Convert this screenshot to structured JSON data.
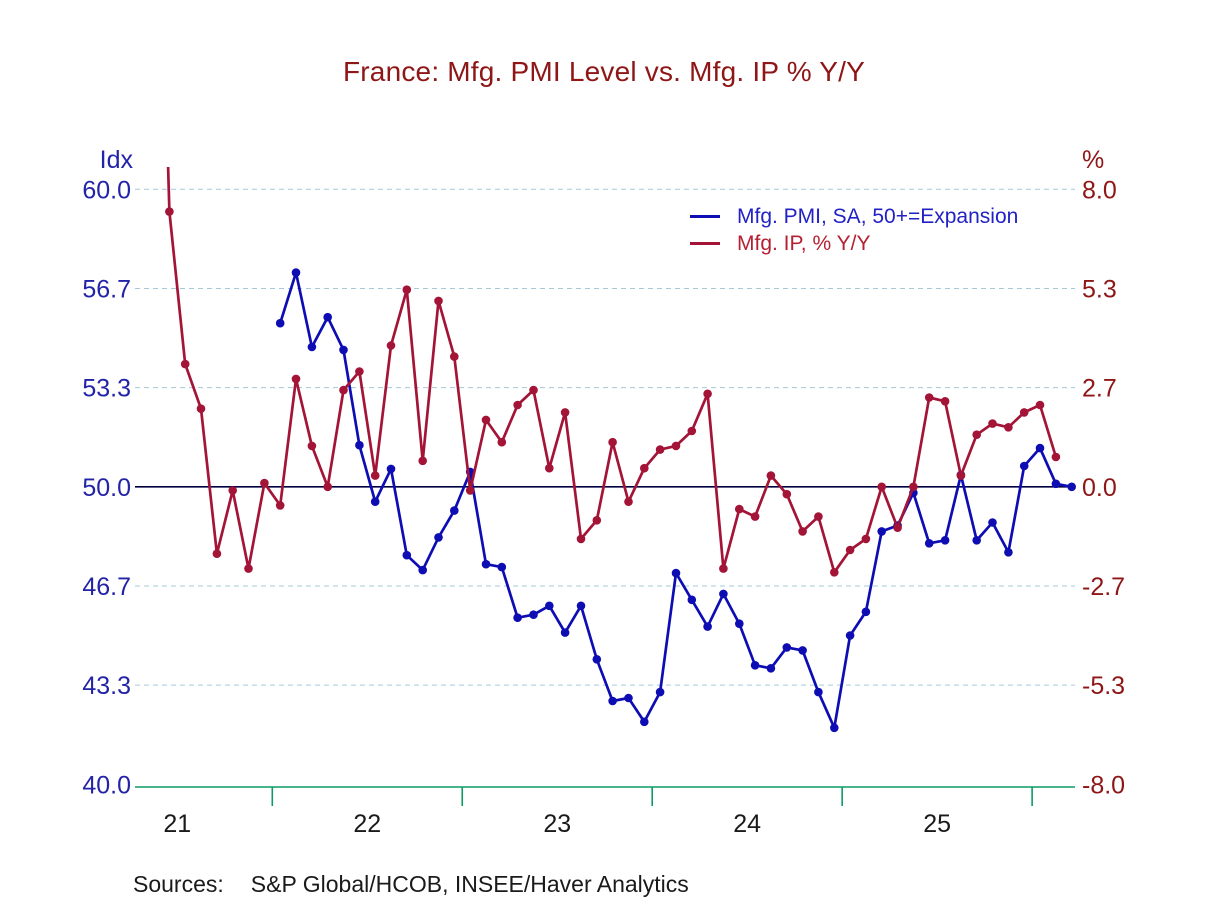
{
  "page": {
    "background": "#ffffff"
  },
  "chart_data": {
    "type": "line",
    "title": "France: Mfg. PMI Level vs. Mfg. IP % Y/Y",
    "title_color": "#8e1616",
    "left_axis": {
      "unit": "Idx",
      "color": "#2323a8",
      "min": 40.0,
      "max": 60.0,
      "tick_labels": [
        "60.0",
        "56.7",
        "53.3",
        "50.0",
        "46.7",
        "43.3",
        "40.0"
      ],
      "tick_values": [
        60,
        56.667,
        53.333,
        50,
        46.667,
        43.333,
        40
      ]
    },
    "right_axis": {
      "unit": "%",
      "color": "#8e1616",
      "min": -8.0,
      "max": 8.0,
      "tick_labels": [
        "8.0",
        "5.3",
        "2.7",
        "0.0",
        "-2.7",
        "-5.3",
        "-8.0"
      ],
      "tick_values": [
        8,
        5.333,
        2.667,
        0,
        -2.667,
        -5.333,
        -8
      ]
    },
    "x_axis": {
      "year_labels": [
        "21",
        "22",
        "23",
        "24",
        "25"
      ],
      "label_color": "#1a1a1a",
      "axis_color": "#0b9b63",
      "tick_years": [
        2022,
        2023,
        2024,
        2025,
        2026
      ]
    },
    "gridline_color": "#a6c9d9",
    "zero_line_color": "#000040",
    "legend": [
      {
        "label": "Mfg. PMI, SA, 50+=Expansion",
        "color": "#0d0db3",
        "text_color": "#2222c4"
      },
      {
        "label": "Mfg. IP, % Y/Y",
        "color": "#a31436",
        "text_color": "#b52032"
      }
    ],
    "series": [
      {
        "name": "Mfg. PMI, SA, 50+=Expansion",
        "axis": "left",
        "color": "#0d0db3",
        "points": [
          [
            "2022-01",
            55.5
          ],
          [
            "2022-02",
            57.2
          ],
          [
            "2022-03",
            54.7
          ],
          [
            "2022-04",
            55.7
          ],
          [
            "2022-05",
            54.6
          ],
          [
            "2022-06",
            51.4
          ],
          [
            "2022-07",
            49.5
          ],
          [
            "2022-08",
            50.6
          ],
          [
            "2022-09",
            47.7
          ],
          [
            "2022-10",
            47.2
          ],
          [
            "2022-11",
            48.3
          ],
          [
            "2022-12",
            49.2
          ],
          [
            "2023-01",
            50.5
          ],
          [
            "2023-02",
            47.4
          ],
          [
            "2023-03",
            47.3
          ],
          [
            "2023-04",
            45.6
          ],
          [
            "2023-05",
            45.7
          ],
          [
            "2023-06",
            46.0
          ],
          [
            "2023-07",
            45.1
          ],
          [
            "2023-08",
            46.0
          ],
          [
            "2023-09",
            44.2
          ],
          [
            "2023-10",
            42.8
          ],
          [
            "2023-11",
            42.9
          ],
          [
            "2023-12",
            42.1
          ],
          [
            "2024-01",
            43.1
          ],
          [
            "2024-02",
            47.1
          ],
          [
            "2024-03",
            46.2
          ],
          [
            "2024-04",
            45.3
          ],
          [
            "2024-05",
            46.4
          ],
          [
            "2024-06",
            45.4
          ],
          [
            "2024-07",
            44.0
          ],
          [
            "2024-08",
            43.9
          ],
          [
            "2024-09",
            44.6
          ],
          [
            "2024-10",
            44.5
          ],
          [
            "2024-11",
            43.1
          ],
          [
            "2024-12",
            41.9
          ],
          [
            "2025-01",
            45.0
          ],
          [
            "2025-02",
            45.8
          ],
          [
            "2025-03",
            48.5
          ],
          [
            "2025-04",
            48.7
          ],
          [
            "2025-05",
            49.8
          ],
          [
            "2025-06",
            48.1
          ],
          [
            "2025-07",
            48.2
          ],
          [
            "2025-08",
            50.4
          ],
          [
            "2025-09",
            48.2
          ],
          [
            "2025-10",
            48.8
          ],
          [
            "2025-11",
            47.8
          ],
          [
            "2025-12",
            50.7
          ],
          [
            "2026-01",
            51.3
          ],
          [
            "2026-02",
            50.1
          ],
          [
            "2026-03",
            50.0
          ]
        ]
      },
      {
        "name": "Mfg. IP, % Y/Y",
        "axis": "right",
        "color": "#a31436",
        "points": [
          [
            "2021-05",
            22.0,
            "offscale"
          ],
          [
            "2021-06",
            7.4
          ],
          [
            "2021-07",
            3.3
          ],
          [
            "2021-08",
            2.1
          ],
          [
            "2021-09",
            -1.8
          ],
          [
            "2021-10",
            -0.1
          ],
          [
            "2021-11",
            -2.2
          ],
          [
            "2021-12",
            0.1
          ],
          [
            "2022-01",
            -0.5
          ],
          [
            "2022-02",
            2.9
          ],
          [
            "2022-03",
            1.1
          ],
          [
            "2022-04",
            0.0
          ],
          [
            "2022-05",
            2.6
          ],
          [
            "2022-06",
            3.1
          ],
          [
            "2022-07",
            0.3
          ],
          [
            "2022-08",
            3.8
          ],
          [
            "2022-09",
            5.3
          ],
          [
            "2022-10",
            0.7
          ],
          [
            "2022-11",
            5.0
          ],
          [
            "2022-12",
            3.5
          ],
          [
            "2023-01",
            -0.1
          ],
          [
            "2023-02",
            1.8
          ],
          [
            "2023-03",
            1.2
          ],
          [
            "2023-04",
            2.2
          ],
          [
            "2023-05",
            2.6
          ],
          [
            "2023-06",
            0.5
          ],
          [
            "2023-07",
            2.0
          ],
          [
            "2023-08",
            -1.4
          ],
          [
            "2023-09",
            -0.9
          ],
          [
            "2023-10",
            1.2
          ],
          [
            "2023-11",
            -0.4
          ],
          [
            "2023-12",
            0.5
          ],
          [
            "2024-01",
            1.0
          ],
          [
            "2024-02",
            1.1
          ],
          [
            "2024-03",
            1.5
          ],
          [
            "2024-04",
            2.5
          ],
          [
            "2024-05",
            -2.2
          ],
          [
            "2024-06",
            -0.6
          ],
          [
            "2024-07",
            -0.8
          ],
          [
            "2024-08",
            0.3
          ],
          [
            "2024-09",
            -0.2
          ],
          [
            "2024-10",
            -1.2
          ],
          [
            "2024-11",
            -0.8
          ],
          [
            "2024-12",
            -2.3
          ],
          [
            "2025-01",
            -1.7
          ],
          [
            "2025-02",
            -1.4
          ],
          [
            "2025-03",
            0.0
          ],
          [
            "2025-04",
            -1.1
          ],
          [
            "2025-05",
            0.0
          ],
          [
            "2025-06",
            2.4
          ],
          [
            "2025-07",
            2.3
          ],
          [
            "2025-08",
            0.3
          ],
          [
            "2025-09",
            1.4
          ],
          [
            "2025-10",
            1.7
          ],
          [
            "2025-11",
            1.6
          ],
          [
            "2025-12",
            2.0
          ],
          [
            "2026-01",
            2.2
          ],
          [
            "2026-02",
            0.8
          ]
        ]
      }
    ],
    "sources_label": "Sources:",
    "sources_text": "S&P Global/HCOB, INSEE/Haver Analytics"
  }
}
